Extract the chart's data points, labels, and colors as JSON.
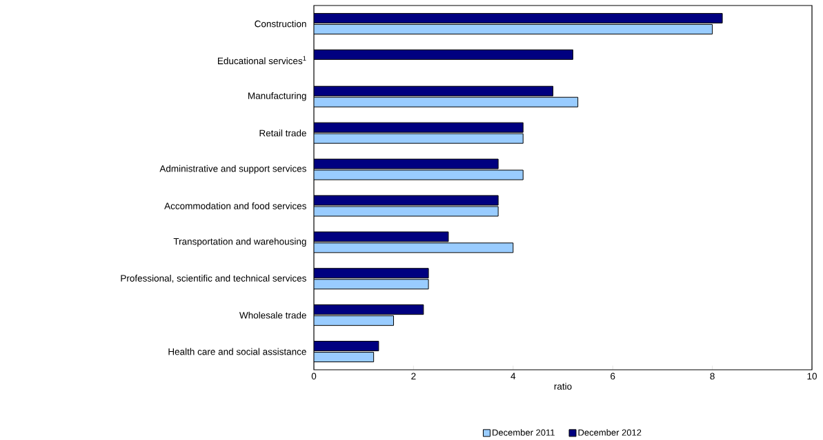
{
  "chart_data": {
    "type": "bar",
    "orientation": "horizontal",
    "xlabel": "ratio",
    "legend": "bottom",
    "categories": [
      "Construction",
      "Educational services$^{1}$",
      "Manufacturing",
      "Retail trade",
      "Administrative and support services",
      "Accommodation and food services",
      "Transportation and warehousing",
      "Professional, scientific and technical services",
      "Wholesale trade",
      "Health care and social assistance"
    ],
    "series": [
      {
        "name": "December 2011",
        "color": "#99ccff",
        "values": [
          8.0,
          null,
          5.3,
          4.2,
          4.2,
          3.7,
          4.0,
          2.3,
          1.6,
          1.2
        ]
      },
      {
        "name": "December 2012",
        "color": "#000080",
        "values": [
          8.2,
          5.2,
          4.8,
          4.2,
          3.7,
          3.7,
          2.7,
          2.3,
          2.2,
          1.3
        ]
      }
    ],
    "xlim": [
      0,
      10
    ],
    "xticks": [
      0,
      2,
      4,
      6,
      8,
      10
    ]
  }
}
